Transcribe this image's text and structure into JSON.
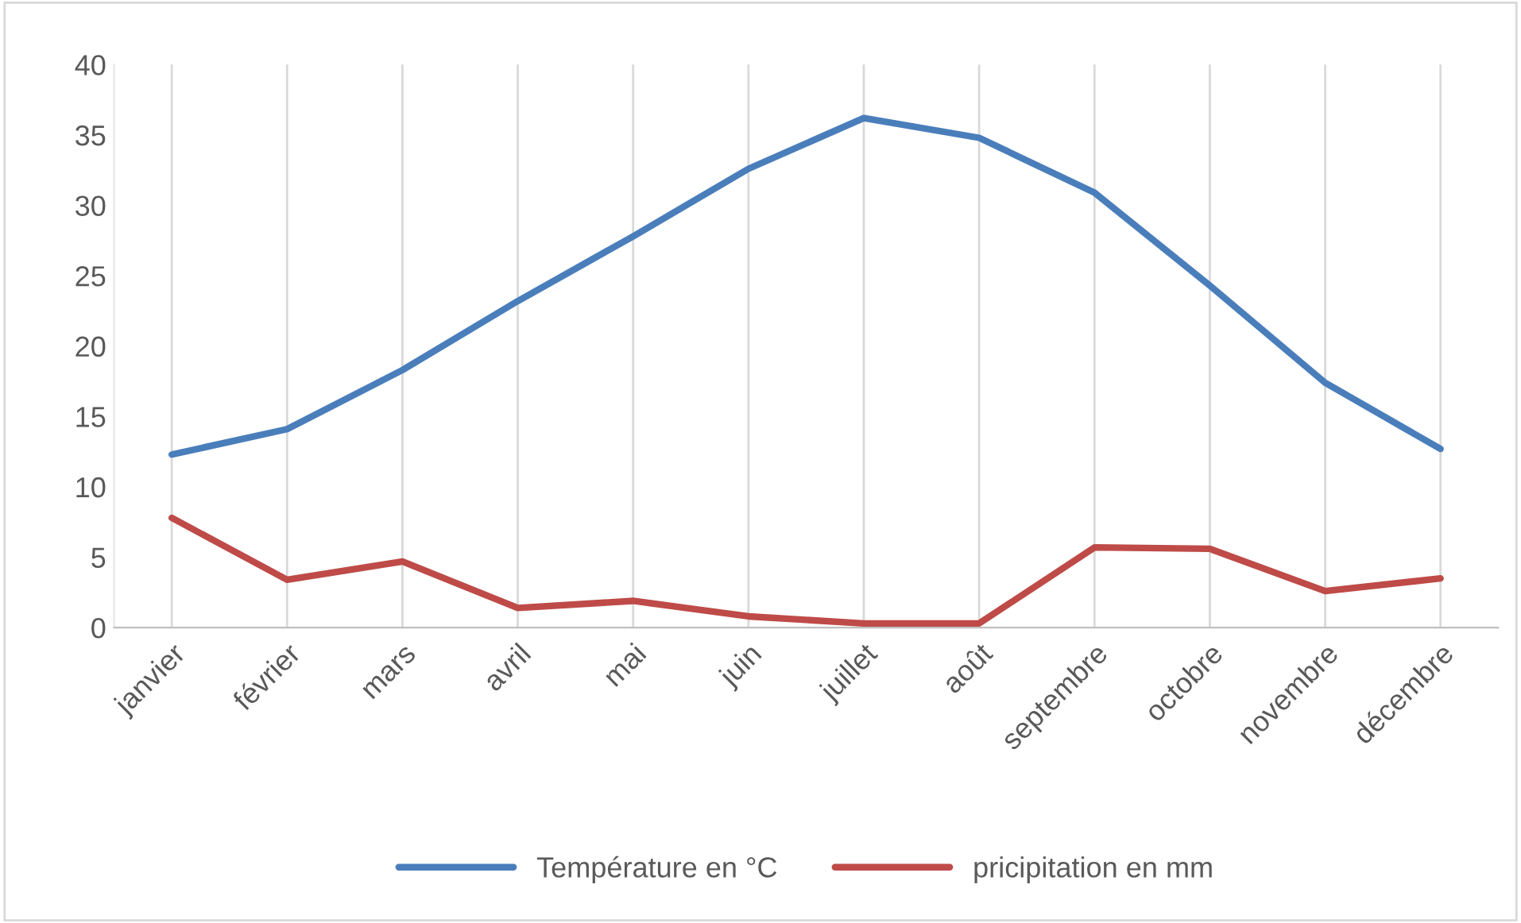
{
  "chart_data": {
    "type": "line",
    "categories": [
      "janvier",
      "février",
      "mars",
      "avril",
      "mai",
      "juin",
      "juillet",
      "août",
      "septembre",
      "octobre",
      "novembre",
      "décembre"
    ],
    "series": [
      {
        "name": "Température en °C",
        "color": "#4a7ebb",
        "values": [
          12.3,
          14.1,
          18.3,
          23.2,
          27.8,
          32.6,
          36.2,
          34.8,
          30.9,
          24.3,
          17.4,
          12.7
        ]
      },
      {
        "name": "pricipitation en mm",
        "color": "#be4b48",
        "values": [
          7.8,
          3.4,
          4.7,
          1.4,
          1.9,
          0.8,
          0.3,
          0.3,
          5.7,
          5.6,
          2.6,
          3.5
        ]
      }
    ],
    "ylim": [
      0,
      40
    ],
    "yticks": [
      0,
      5,
      10,
      15,
      20,
      25,
      30,
      35,
      40
    ],
    "grid": "x",
    "legend": "bottom",
    "marker": "none",
    "line_style": "solid"
  }
}
